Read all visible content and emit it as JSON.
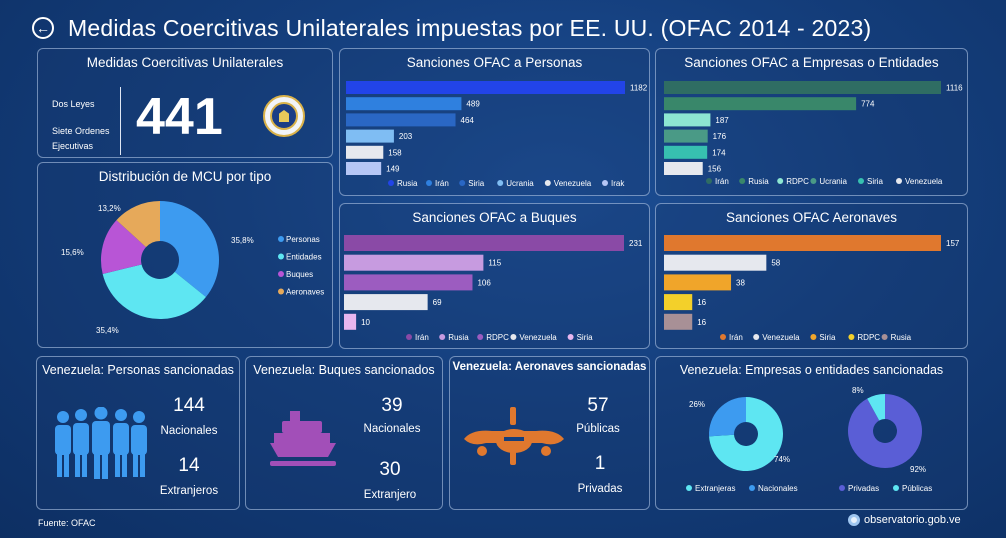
{
  "header": {
    "back_icon": "back-arrow-icon",
    "title": "Medidas Coercitivas Unilaterales impuestas por EE. UU. (OFAC  2014 - 2023)"
  },
  "mcu": {
    "title": "Medidas Coercitivas Unilaterales",
    "line1": "Dos Leyes",
    "line2": "Siete Ordenes",
    "line3": "Ejecutivas",
    "total": "441",
    "seal_icon": "us-treasury-seal-icon"
  },
  "colors": {
    "accent_blue": "#2f5be8"
  },
  "charts": {
    "personas": {
      "type": "bar",
      "title": "Sanciones OFAC a Personas",
      "series": [
        {
          "name": "Rusia",
          "value": 1182,
          "color": "#2244e8"
        },
        {
          "name": "Irán",
          "value": 489,
          "color": "#2f80df"
        },
        {
          "name": "Siria",
          "value": 464,
          "color": "#2a67c4"
        },
        {
          "name": "Ucrania",
          "value": 203,
          "color": "#7fbdf3"
        },
        {
          "name": "Venezuela",
          "value": 158,
          "color": "#e6e8ee"
        },
        {
          "name": "Irak",
          "value": 149,
          "color": "#b6c6f5"
        }
      ]
    },
    "empresas": {
      "type": "bar",
      "title": "Sanciones OFAC a Empresas o Entidades",
      "series": [
        {
          "name": "Irán",
          "value": 1116,
          "color": "#2f6d63"
        },
        {
          "name": "Rusia",
          "value": 774,
          "color": "#39876a"
        },
        {
          "name": "RDPC",
          "value": 187,
          "color": "#8de6d2"
        },
        {
          "name": "Ucrania",
          "value": 176,
          "color": "#4a9a86"
        },
        {
          "name": "Siria",
          "value": 174,
          "color": "#37c0b0"
        },
        {
          "name": "Venezuela",
          "value": 156,
          "color": "#e6e8ee"
        }
      ]
    },
    "buques": {
      "type": "bar",
      "title": "Sanciones OFAC a Buques",
      "series": [
        {
          "name": "Irán",
          "value": 231,
          "color": "#8a4aa6"
        },
        {
          "name": "Rusia",
          "value": 115,
          "color": "#c79be0"
        },
        {
          "name": "RDPC",
          "value": 106,
          "color": "#9c5cc0"
        },
        {
          "name": "Venezuela",
          "value": 69,
          "color": "#e6e8ee"
        },
        {
          "name": "Siria",
          "value": 10,
          "color": "#e8b6ef"
        }
      ]
    },
    "aeronaves": {
      "type": "bar",
      "title": "Sanciones OFAC Aeronaves",
      "series": [
        {
          "name": "Irán",
          "value": 157,
          "color": "#e0782e"
        },
        {
          "name": "Venezuela",
          "value": 58,
          "color": "#e6e8ee"
        },
        {
          "name": "Siria",
          "value": 38,
          "color": "#f0a52a"
        },
        {
          "name": "RDPC",
          "value": 16,
          "color": "#f3d02a"
        },
        {
          "name": "Rusia",
          "value": 16,
          "color": "#a89096"
        }
      ]
    },
    "tipo": {
      "type": "pie",
      "title": "Distribución de MCU por tipo",
      "slices": [
        {
          "name": "Personas",
          "label": "35,8%",
          "value": 35.8,
          "color": "#3d9bf0"
        },
        {
          "name": "Entidades",
          "label": "35,4%",
          "value": 35.4,
          "color": "#5ee6f2"
        },
        {
          "name": "Buques",
          "label": "15,6%",
          "value": 15.6,
          "color": "#b855d6"
        },
        {
          "name": "Aeronaves",
          "label": "13,2%",
          "value": 13.2,
          "color": "#e6a95a"
        }
      ]
    },
    "empresas_ven": [
      {
        "type": "pie",
        "slices": [
          {
            "name": "Extranjeras",
            "label": "74%",
            "value": 74,
            "color": "#5ee6f2"
          },
          {
            "name": "Nacionales",
            "label": "26%",
            "value": 26,
            "color": "#3d9bf0"
          }
        ]
      },
      {
        "type": "pie",
        "slices": [
          {
            "name": "Privadas",
            "label": "92%",
            "value": 92,
            "color": "#5a5ed6"
          },
          {
            "name": "Públicas",
            "label": "8%",
            "value": 8,
            "color": "#5ee6f2"
          }
        ]
      }
    ]
  },
  "venezuela": {
    "personas": {
      "title": "Venezuela: Personas sancionadas",
      "n1": "144",
      "l1": "Nacionales",
      "n2": "14",
      "l2": "Extranjeros",
      "icon": "people-group-icon"
    },
    "buques": {
      "title": "Venezuela: Buques sancionados",
      "n1": "39",
      "l1": "Nacionales",
      "n2": "30",
      "l2": "Extranjero",
      "icon": "ship-icon"
    },
    "aeronaves": {
      "title": "Venezuela: Aeronaves sancionadas",
      "n1": "57",
      "l1": "Públicas",
      "n2": "1",
      "l2": "Privadas",
      "icon": "airplane-icon"
    },
    "empresas": {
      "title": "Venezuela: Empresas o entidades sancionadas"
    }
  },
  "footer": {
    "source": "Fuente: OFAC",
    "site": "observatorio.gob.ve",
    "site_icon": "observatorio-logo-icon"
  }
}
